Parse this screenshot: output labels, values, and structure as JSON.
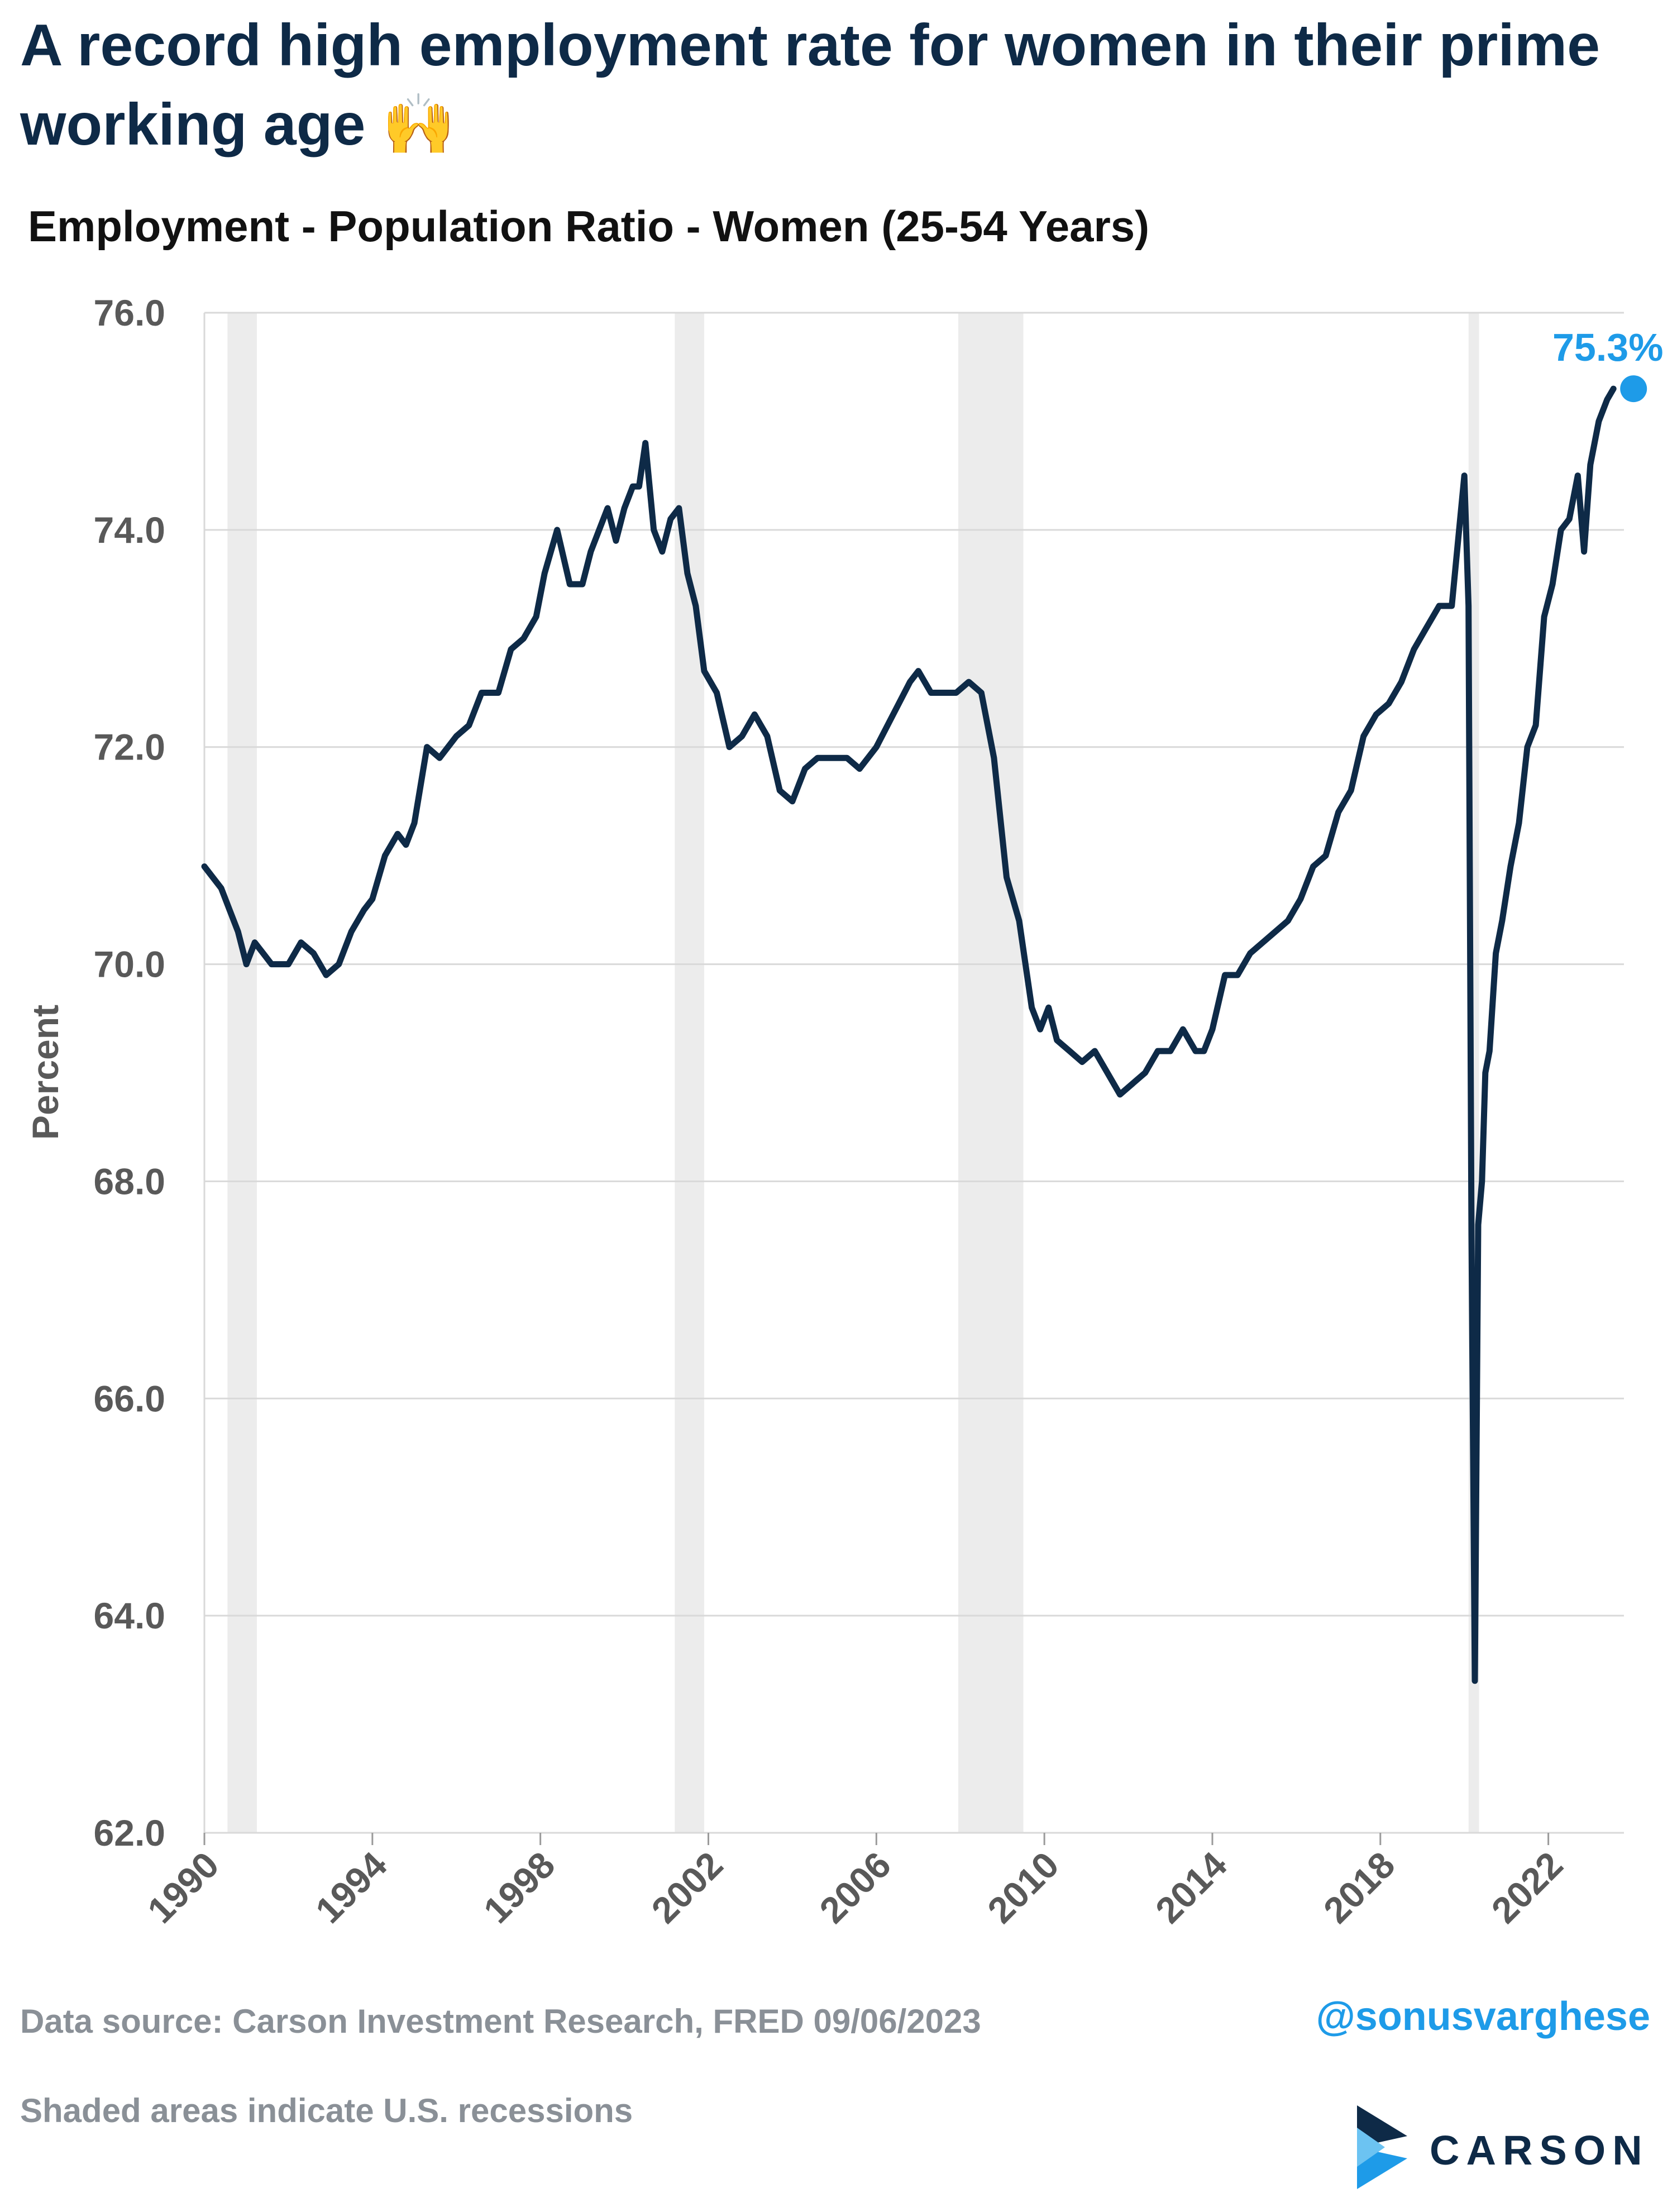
{
  "header": {
    "title": "A record high employment rate for women in their prime working age",
    "title_emoji": "🙌",
    "subtitle": "Employment - Population Ratio - Women (25-54 Years)"
  },
  "footer": {
    "source": "Data source: Carson Investment Research, FRED   09/06/2023",
    "note": "Shaded areas indicate U.S. recessions",
    "handle": "@sonusvarghese",
    "brand": "CARSON"
  },
  "colors": {
    "line": "#0e2a47",
    "highlight": "#1e9be8",
    "recession": "#ececec",
    "grid": "#d9d9d9"
  },
  "chart_data": {
    "type": "line",
    "ylabel": "Percent",
    "xlabel": "",
    "ylim": [
      62,
      76
    ],
    "yticks": [
      "62.0",
      "64.0",
      "66.0",
      "68.0",
      "70.0",
      "72.0",
      "74.0",
      "76.0"
    ],
    "xlim": [
      1990,
      2023.8
    ],
    "xticks": [
      "1990",
      "1994",
      "1998",
      "2002",
      "2006",
      "2010",
      "2014",
      "2018",
      "2022"
    ],
    "grid": "horizontal",
    "recessions": [
      [
        1990.55,
        1991.25
      ],
      [
        2001.2,
        2001.9
      ],
      [
        2007.95,
        2009.5
      ],
      [
        2020.1,
        2020.35
      ]
    ],
    "last_label": "75.3%",
    "last_point": [
      2023.55,
      75.3
    ],
    "series": [
      {
        "x": [
          1990.0,
          1990.2,
          1990.4,
          1990.6,
          1990.8,
          1991.0,
          1991.2,
          1991.4,
          1991.6,
          1991.8,
          1992.0,
          1992.3,
          1992.6,
          1992.9,
          1993.2,
          1993.5,
          1993.8,
          1994.0,
          1994.3,
          1994.6,
          1994.8,
          1995.0,
          1995.3,
          1995.6,
          1996.0,
          1996.3,
          1996.6,
          1997.0,
          1997.3,
          1997.6,
          1997.9,
          1998.1,
          1998.4,
          1998.7,
          1999.0,
          1999.2,
          1999.4,
          1999.6,
          1999.8,
          2000.0,
          2000.2,
          2000.35,
          2000.5,
          2000.7,
          2000.9,
          2001.1,
          2001.3,
          2001.5,
          2001.7,
          2001.9,
          2002.2,
          2002.5,
          2002.8,
          2003.1,
          2003.4,
          2003.7,
          2004.0,
          2004.3,
          2004.6,
          2005.0,
          2005.3,
          2005.6,
          2006.0,
          2006.4,
          2006.8,
          2007.0,
          2007.3,
          2007.6,
          2007.9,
          2008.2,
          2008.5,
          2008.8,
          2009.1,
          2009.4,
          2009.7,
          2009.9,
          2010.1,
          2010.3,
          2010.6,
          2010.9,
          2011.2,
          2011.5,
          2011.8,
          2012.1,
          2012.4,
          2012.7,
          2013.0,
          2013.3,
          2013.6,
          2013.8,
          2014.0,
          2014.3,
          2014.6,
          2014.9,
          2015.2,
          2015.5,
          2015.8,
          2016.1,
          2016.4,
          2016.7,
          2017.0,
          2017.3,
          2017.6,
          2017.9,
          2018.2,
          2018.5,
          2018.8,
          2019.1,
          2019.4,
          2019.7,
          2019.9,
          2020.0,
          2020.1,
          2020.17,
          2020.25,
          2020.33,
          2020.42,
          2020.5,
          2020.6,
          2020.75,
          2020.9,
          2021.1,
          2021.3,
          2021.5,
          2021.7,
          2021.9,
          2022.1,
          2022.3,
          2022.5,
          2022.7,
          2022.85,
          2023.0,
          2023.2,
          2023.4,
          2023.55
        ],
        "y": [
          70.9,
          70.8,
          70.7,
          70.5,
          70.3,
          70.0,
          70.2,
          70.1,
          70.0,
          70.0,
          70.0,
          70.2,
          70.1,
          69.9,
          70.0,
          70.3,
          70.5,
          70.6,
          71.0,
          71.2,
          71.1,
          71.3,
          72.0,
          71.9,
          72.1,
          72.2,
          72.5,
          72.5,
          72.9,
          73.0,
          73.2,
          73.6,
          74.0,
          73.5,
          73.5,
          73.8,
          74.0,
          74.2,
          73.9,
          74.2,
          74.4,
          74.4,
          74.8,
          74.0,
          73.8,
          74.1,
          74.2,
          73.6,
          73.3,
          72.7,
          72.5,
          72.0,
          72.1,
          72.3,
          72.1,
          71.6,
          71.5,
          71.8,
          71.9,
          71.9,
          71.9,
          71.8,
          72.0,
          72.3,
          72.6,
          72.7,
          72.5,
          72.5,
          72.5,
          72.6,
          72.5,
          71.9,
          70.8,
          70.4,
          69.6,
          69.4,
          69.6,
          69.3,
          69.2,
          69.1,
          69.2,
          69.0,
          68.8,
          68.9,
          69.0,
          69.2,
          69.2,
          69.4,
          69.2,
          69.2,
          69.4,
          69.9,
          69.9,
          70.1,
          70.2,
          70.3,
          70.4,
          70.6,
          70.9,
          71.0,
          71.4,
          71.6,
          72.1,
          72.3,
          72.4,
          72.6,
          72.9,
          73.1,
          73.3,
          73.3,
          74.1,
          74.5,
          73.3,
          67.5,
          63.4,
          67.6,
          68.0,
          69.0,
          69.2,
          70.1,
          70.4,
          70.9,
          71.3,
          72.0,
          72.2,
          73.2,
          73.5,
          74.0,
          74.1,
          74.5,
          73.8,
          74.6,
          75.0,
          75.2,
          75.3
        ]
      }
    ]
  }
}
